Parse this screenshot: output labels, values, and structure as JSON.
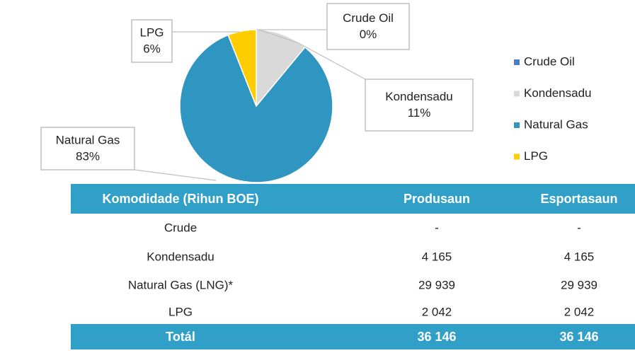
{
  "chart_data": {
    "type": "pie",
    "categories": [
      "Crude Oil",
      "Kondensadu",
      "Natural Gas",
      "LPG"
    ],
    "values": [
      0,
      11,
      83,
      6
    ],
    "value_labels": [
      "0%",
      "11%",
      "83%",
      "6%"
    ],
    "colors": [
      "#4a7ebb",
      "#d9d9d9",
      "#2e96c0",
      "#ffcc00"
    ],
    "legend": "right"
  },
  "table": {
    "header": [
      "Komodidade (Rihun BOE)",
      "Produsaun",
      "Esportasaun"
    ],
    "rows": [
      [
        "Crude",
        "-",
        "-"
      ],
      [
        "Kondensadu",
        "4 165",
        "4 165"
      ],
      [
        "Natural Gas (LNG)*",
        "29 939",
        "29 939"
      ],
      [
        "LPG",
        "2 042",
        "2 042"
      ]
    ],
    "total": [
      "Totál",
      "36 146",
      "36 146"
    ]
  }
}
